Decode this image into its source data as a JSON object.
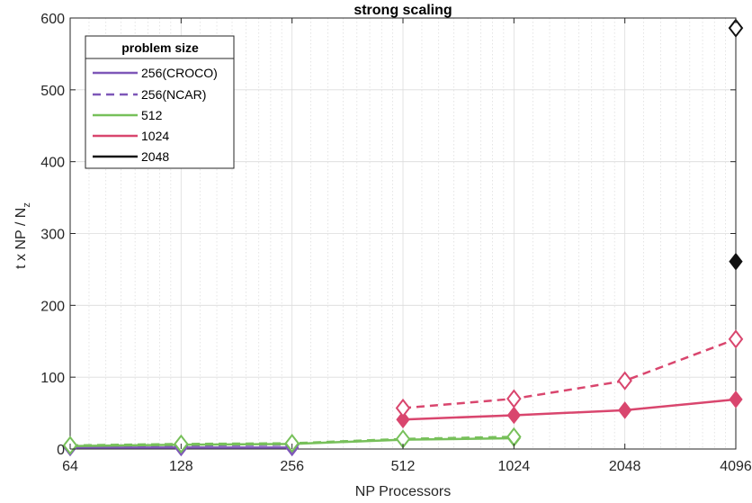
{
  "chart_data": {
    "type": "line",
    "title": "strong scaling",
    "xlabel": "NP Processors",
    "ylabel": "t x NP / N",
    "ylabel_subscript": "z",
    "x_scale": "log2",
    "xlim": [
      64,
      4096
    ],
    "ylim": [
      0,
      600
    ],
    "x_ticks": [
      64,
      128,
      256,
      512,
      1024,
      2048,
      4096
    ],
    "x_tick_labels": [
      "64",
      "128",
      "256",
      "512",
      "1024",
      "2048",
      "4096"
    ],
    "y_ticks": [
      0,
      100,
      200,
      300,
      400,
      500,
      600
    ],
    "y_tick_labels": [
      "0",
      "100",
      "200",
      "300",
      "400",
      "500",
      "600"
    ],
    "grid": true,
    "legend": {
      "title": "problem size",
      "placement": "top-left",
      "entries": [
        "256(CROCO)",
        "256(NCAR)",
        "512",
        "1024",
        "2048"
      ]
    },
    "series": [
      {
        "name": "256(CROCO)",
        "color": "#7e57b8",
        "dash": false,
        "marker": "filled-diamond",
        "x": [
          64,
          128,
          256
        ],
        "y": [
          2,
          2,
          2
        ]
      },
      {
        "name": "256(NCAR)",
        "color": "#7e57b8",
        "dash": true,
        "marker": "open-diamond",
        "x": [
          64,
          128,
          256
        ],
        "y": [
          4,
          5,
          6
        ]
      },
      {
        "name": "512",
        "color": "#77c05a",
        "dash": false,
        "marker": "filled-diamond",
        "x": [
          64,
          128,
          256,
          512,
          1024
        ],
        "y": [
          4,
          6,
          7,
          13,
          15
        ]
      },
      {
        "name": "512",
        "color": "#77c05a",
        "dash": true,
        "marker": "open-diamond",
        "x": [
          64,
          128,
          256,
          512,
          1024
        ],
        "y": [
          5,
          7,
          8,
          14,
          17
        ]
      },
      {
        "name": "1024",
        "color": "#d9466e",
        "dash": false,
        "marker": "filled-diamond",
        "x": [
          512,
          1024,
          2048,
          4096
        ],
        "y": [
          41,
          47,
          54,
          69
        ]
      },
      {
        "name": "1024",
        "color": "#d9466e",
        "dash": true,
        "marker": "open-diamond",
        "x": [
          512,
          1024,
          2048,
          4096
        ],
        "y": [
          57,
          70,
          95,
          153
        ]
      },
      {
        "name": "2048",
        "color": "#111111",
        "dash": false,
        "marker": "filled-diamond",
        "x": [
          4096
        ],
        "y": [
          261
        ]
      },
      {
        "name": "2048",
        "color": "#111111",
        "dash": true,
        "marker": "open-diamond",
        "x": [
          4096
        ],
        "y": [
          586
        ]
      }
    ]
  }
}
